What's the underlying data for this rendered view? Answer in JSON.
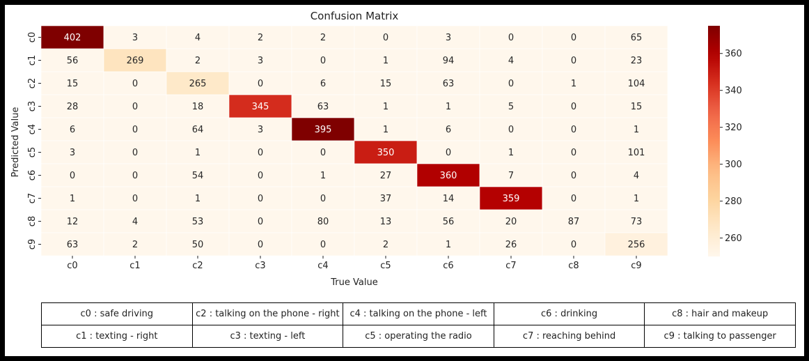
{
  "chart_data": {
    "type": "heatmap",
    "title": "Confusion Matrix",
    "xlabel": "True Value",
    "ylabel": "Predicted Value",
    "x_categories": [
      "c0",
      "c1",
      "c2",
      "c3",
      "c4",
      "c5",
      "c6",
      "c7",
      "c8",
      "c9"
    ],
    "y_categories": [
      "c0",
      "c1",
      "c2",
      "c3",
      "c4",
      "c5",
      "c6",
      "c7",
      "c8",
      "c9"
    ],
    "values": [
      [
        402,
        3,
        4,
        2,
        2,
        0,
        3,
        0,
        0,
        65
      ],
      [
        56,
        269,
        2,
        3,
        0,
        1,
        94,
        4,
        0,
        23
      ],
      [
        15,
        0,
        265,
        0,
        6,
        15,
        63,
        0,
        1,
        104
      ],
      [
        28,
        0,
        18,
        345,
        63,
        1,
        1,
        5,
        0,
        15
      ],
      [
        6,
        0,
        64,
        3,
        395,
        1,
        6,
        0,
        0,
        1
      ],
      [
        3,
        0,
        1,
        0,
        0,
        350,
        0,
        1,
        0,
        101
      ],
      [
        0,
        0,
        54,
        0,
        1,
        27,
        360,
        7,
        0,
        4
      ],
      [
        1,
        0,
        1,
        0,
        0,
        37,
        14,
        359,
        0,
        1
      ],
      [
        12,
        4,
        53,
        0,
        80,
        13,
        56,
        20,
        87,
        73
      ],
      [
        63,
        2,
        50,
        0,
        0,
        2,
        1,
        26,
        0,
        256
      ]
    ],
    "colorbar": {
      "colormap": "OrRd",
      "vmin": 250,
      "vmax": 375,
      "ticks": [
        260,
        280,
        300,
        320,
        340,
        360
      ]
    },
    "legend_table": [
      [
        "c0 : safe driving",
        "c2 : talking on the phone - right",
        "c4 : talking on the phone - left",
        "c6 : drinking",
        "c8 : hair and makeup"
      ],
      [
        "c1 : texting - right",
        "c3 : texting - left",
        "c5 : operating the radio",
        "c7 : reaching behind",
        "c9 : talking to passenger"
      ]
    ]
  }
}
